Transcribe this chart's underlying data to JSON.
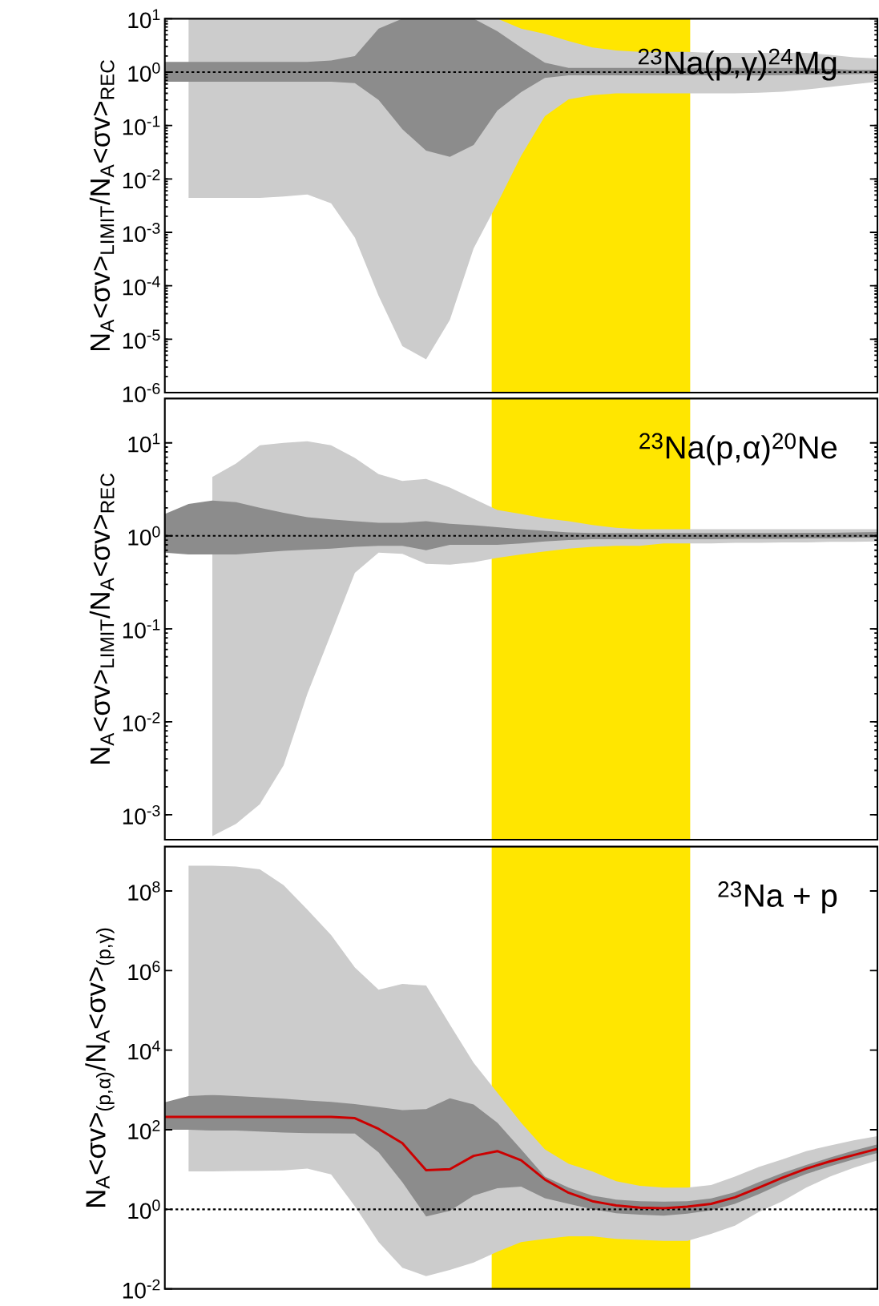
{
  "chart_data": [
    {
      "type": "area",
      "categories": [
        null,
        null,
        null,
        null,
        null,
        null,
        null,
        null,
        null,
        null,
        null,
        null,
        null,
        null,
        null,
        null,
        null,
        null,
        null,
        null,
        null,
        null,
        null,
        null,
        null,
        null,
        null,
        null,
        null,
        null,
        null
      ],
      "ylabel": "N$_{A}$<σv>$_{LIMIT}$/N$_{A}$<σv>$_{REC}$",
      "annotations": [
        "$^{23}$Na(p,γ)$^{24}$Mg"
      ],
      "log": "y",
      "tick_labels": "y",
      "ylim": [
        1e-06,
        10
      ],
      "yticks": [
        {
          "value": 1e-06,
          "label": "10$^{-6}$"
        },
        {
          "value": 1e-05,
          "label": "10$^{-5}$"
        },
        {
          "value": 0.0001,
          "label": "10$^{-4}$"
        },
        {
          "value": 0.001,
          "label": "10$^{-3}$"
        },
        {
          "value": 0.01,
          "label": "10$^{-2}$"
        },
        {
          "value": 0.1,
          "label": "10$^{-1}$"
        },
        {
          "value": 1,
          "label": "10$^{0}$"
        },
        {
          "value": 10,
          "label": "10$^{1}$"
        }
      ],
      "ref_lines": [
        {
          "axis": "y",
          "value": 1,
          "color": "#000000",
          "line_style": "dotted"
        }
      ],
      "series": [
        {
          "color": "#cccccc",
          "values": [
            null,
            null,
            null,
            null,
            null,
            null,
            null,
            null,
            null,
            null,
            null,
            null,
            null,
            null,
            null,
            null,
            null,
            null,
            null,
            null,
            null,
            null,
            null,
            null,
            null,
            null,
            null,
            null,
            null,
            null,
            null
          ],
          "upper": [
            null,
            10,
            10,
            10,
            10,
            10,
            10,
            10,
            10,
            10,
            10,
            10,
            10,
            10,
            10,
            6.5,
            5.2,
            3.8,
            2.9,
            2.55,
            2.4,
            2.4,
            2.4,
            2.3,
            2.3,
            2.3,
            2.3,
            2.3,
            2.1,
            1.9,
            1.8
          ],
          "lower": [
            null,
            0.0044,
            0.0044,
            0.0044,
            0.0044,
            0.0047,
            0.0051,
            0.0035,
            0.0008,
            6.5e-05,
            7.4e-06,
            4.2e-06,
            2.3e-05,
            0.0005,
            0.0035,
            0.027,
            0.15,
            0.31,
            0.37,
            0.4,
            0.4,
            0.4,
            0.4,
            0.4,
            0.4,
            0.41,
            0.43,
            0.47,
            0.53,
            0.59,
            0.66
          ]
        },
        {
          "color": "#8c8c8c",
          "values": [
            null,
            null,
            null,
            null,
            null,
            null,
            null,
            null,
            null,
            null,
            null,
            null,
            null,
            null,
            null,
            null,
            null,
            null,
            null,
            null,
            null,
            null,
            null,
            null,
            null,
            null,
            null,
            null,
            null,
            null,
            null
          ],
          "upper": [
            1.55,
            1.55,
            1.55,
            1.55,
            1.55,
            1.55,
            1.55,
            1.65,
            2.0,
            6.5,
            10,
            10,
            10,
            10,
            5.8,
            2.9,
            1.5,
            1.2,
            1.2,
            1.2,
            1.2,
            1.2,
            1.2,
            1.2,
            1.2,
            1.2,
            1.2,
            1.2,
            1.15,
            1.1,
            1.1
          ],
          "lower": [
            0.66,
            0.66,
            0.66,
            0.66,
            0.66,
            0.66,
            0.66,
            0.66,
            0.62,
            0.3,
            0.085,
            0.034,
            0.026,
            0.043,
            0.19,
            0.42,
            0.78,
            0.87,
            0.87,
            0.87,
            0.87,
            0.87,
            0.87,
            0.87,
            0.87,
            0.87,
            0.88,
            0.9,
            0.9,
            0.92,
            0.93
          ]
        }
      ]
    },
    {
      "type": "area",
      "categories": [
        null,
        null,
        null,
        null,
        null,
        null,
        null,
        null,
        null,
        null,
        null,
        null,
        null,
        null,
        null,
        null,
        null,
        null,
        null,
        null,
        null,
        null,
        null,
        null,
        null,
        null,
        null,
        null,
        null,
        null,
        null
      ],
      "ylabel": "N$_{A}$<σv>$_{LIMIT}$/N$_{A}$<σv>$_{REC}$",
      "annotations": [
        "$^{23}$Na(p,α)$^{20}$Ne"
      ],
      "log": "y",
      "tick_labels": "y",
      "ylim": [
        0.00054,
        30
      ],
      "yticks": [
        {
          "value": 0.001,
          "label": "10$^{-3}$"
        },
        {
          "value": 0.01,
          "label": "10$^{-2}$"
        },
        {
          "value": 0.1,
          "label": "10$^{-1}$"
        },
        {
          "value": 1,
          "label": "10$^{0}$"
        },
        {
          "value": 10,
          "label": "10$^{1}$"
        }
      ],
      "ref_lines": [
        {
          "axis": "y",
          "value": 1,
          "color": "#000000",
          "line_style": "dotted"
        }
      ],
      "series": [
        {
          "color": "#cccccc",
          "values": [
            null,
            null,
            null,
            null,
            null,
            null,
            null,
            null,
            null,
            null,
            null,
            null,
            null,
            null,
            null,
            null,
            null,
            null,
            null,
            null,
            null,
            null,
            null,
            null,
            null,
            null,
            null,
            null,
            null,
            null,
            null
          ],
          "upper": [
            null,
            null,
            4.3,
            6,
            9.4,
            10,
            10.4,
            9.4,
            6.9,
            4.6,
            3.9,
            4.1,
            3.3,
            2.5,
            1.9,
            1.72,
            1.54,
            1.44,
            1.31,
            1.22,
            1.18,
            1.18,
            1.18,
            1.18,
            1.18,
            1.18,
            1.18,
            1.18,
            1.18,
            1.18,
            1.18
          ],
          "lower": [
            null,
            null,
            0.00059,
            0.0008,
            0.0013,
            0.0034,
            0.02,
            0.089,
            0.4,
            0.66,
            0.64,
            0.5,
            0.49,
            0.52,
            0.58,
            0.63,
            0.68,
            0.73,
            0.76,
            0.78,
            0.78,
            0.83,
            0.83,
            0.83,
            0.84,
            0.84,
            0.85,
            0.85,
            0.86,
            0.86,
            0.87
          ]
        },
        {
          "color": "#8c8c8c",
          "values": [
            null,
            null,
            null,
            null,
            null,
            null,
            null,
            null,
            null,
            null,
            null,
            null,
            null,
            null,
            null,
            null,
            null,
            null,
            null,
            null,
            null,
            null,
            null,
            null,
            null,
            null,
            null,
            null,
            null,
            null,
            null
          ],
          "upper": [
            1.72,
            2.2,
            2.4,
            2.3,
            2.0,
            1.77,
            1.59,
            1.5,
            1.44,
            1.38,
            1.38,
            1.44,
            1.35,
            1.3,
            1.24,
            1.18,
            1.13,
            1.09,
            1.07,
            1.07,
            1.07,
            1.07,
            1.07,
            1.07,
            1.07,
            1.07,
            1.07,
            1.08,
            1.08,
            1.09,
            1.1
          ],
          "lower": [
            0.66,
            0.63,
            0.63,
            0.63,
            0.66,
            0.69,
            0.71,
            0.73,
            0.76,
            0.78,
            0.78,
            0.7,
            0.8,
            0.8,
            0.8,
            0.83,
            0.87,
            0.9,
            0.92,
            0.92,
            0.92,
            0.92,
            0.92,
            0.92,
            0.93,
            0.93,
            0.93,
            0.94,
            0.94,
            0.95,
            0.95
          ]
        }
      ]
    },
    {
      "type": "line",
      "categories": [
        null,
        null,
        null,
        null,
        null,
        null,
        null,
        null,
        null,
        null,
        null,
        null,
        null,
        null,
        null,
        null,
        null,
        null,
        null,
        null,
        null,
        null,
        null,
        null,
        null,
        null,
        null,
        null,
        null,
        null,
        null
      ],
      "ylabel": "N$_{A}$<σv>$_{(p,α)}$/N$_{A}$<σv>$_{(p,γ)}$",
      "annotations": [
        "$^{23}$Na + p"
      ],
      "log": "y",
      "tick_labels": "y",
      "ylim": [
        0.01,
        1300000000.0
      ],
      "yticks": [
        {
          "value": 0.01,
          "label": "10$^{-2}$"
        },
        {
          "value": 1,
          "label": "10$^{0}$"
        },
        {
          "value": 100,
          "label": "10$^{2}$"
        },
        {
          "value": 10000,
          "label": "10$^{4}$"
        },
        {
          "value": 1000000,
          "label": "10$^{6}$"
        },
        {
          "value": 100000000,
          "label": "10$^{8}$"
        }
      ],
      "ref_lines": [
        {
          "axis": "y",
          "value": 1,
          "color": "#000000",
          "line_style": "dotted"
        }
      ],
      "series": [
        {
          "type": "area",
          "color": "#cccccc",
          "values": [
            null,
            null,
            null,
            null,
            null,
            null,
            null,
            null,
            null,
            null,
            null,
            null,
            null,
            null,
            null,
            null,
            null,
            null,
            null,
            null,
            null,
            null,
            null,
            null,
            null,
            null,
            null,
            null,
            null,
            null,
            null
          ],
          "upper": [
            null,
            430000000,
            430000000,
            410000000,
            350000000,
            140000000,
            34000000,
            7800000,
            1200000,
            330000,
            460000,
            420000,
            44000,
            4800,
            850,
            150,
            32,
            14,
            9,
            5.1,
            3.9,
            3.5,
            3.5,
            4.1,
            6.6,
            11.6,
            18,
            29,
            40,
            54,
            69
          ],
          "lower": [
            null,
            9,
            9,
            9.2,
            9.3,
            9.5,
            10.5,
            7.5,
            1.2,
            0.15,
            0.034,
            0.021,
            0.03,
            0.046,
            0.086,
            0.15,
            0.18,
            0.21,
            0.21,
            0.18,
            0.17,
            0.16,
            0.16,
            0.24,
            0.39,
            0.85,
            1.6,
            3.5,
            6.6,
            11,
            17
          ]
        },
        {
          "type": "area",
          "color": "#8c8c8c",
          "values": [
            null,
            null,
            null,
            null,
            null,
            null,
            null,
            null,
            null,
            null,
            null,
            null,
            null,
            null,
            null,
            null,
            null,
            null,
            null,
            null,
            null,
            null,
            null,
            null,
            null,
            null,
            null,
            null,
            null,
            null,
            null
          ],
          "upper": [
            490,
            700,
            750,
            700,
            650,
            600,
            540,
            500,
            440,
            370,
            310,
            330,
            620,
            430,
            150,
            32,
            6.6,
            3.5,
            2.2,
            1.76,
            1.6,
            1.55,
            1.6,
            1.87,
            2.7,
            4.8,
            8.2,
            13,
            20,
            30,
            43
          ],
          "lower": [
            100,
            100,
            95,
            95,
            90,
            85,
            82,
            81,
            80,
            27,
            4.8,
            0.66,
            0.91,
            2.2,
            3.4,
            3.7,
            1.9,
            1.37,
            1.0,
            0.8,
            0.73,
            0.69,
            0.78,
            0.95,
            1.37,
            2.4,
            4.5,
            7.7,
            12,
            18,
            26
          ]
        },
        {
          "color": "#cc0000",
          "values": [
            209,
            209,
            209,
            209,
            209,
            209,
            209,
            209,
            195,
            105,
            46,
            9.6,
            10.2,
            22,
            29,
            17,
            5.6,
            2.6,
            1.6,
            1.25,
            1.1,
            1.06,
            1.17,
            1.37,
            2.0,
            3.5,
            6.2,
            10.5,
            16,
            23,
            33
          ]
        }
      ]
    }
  ]
}
